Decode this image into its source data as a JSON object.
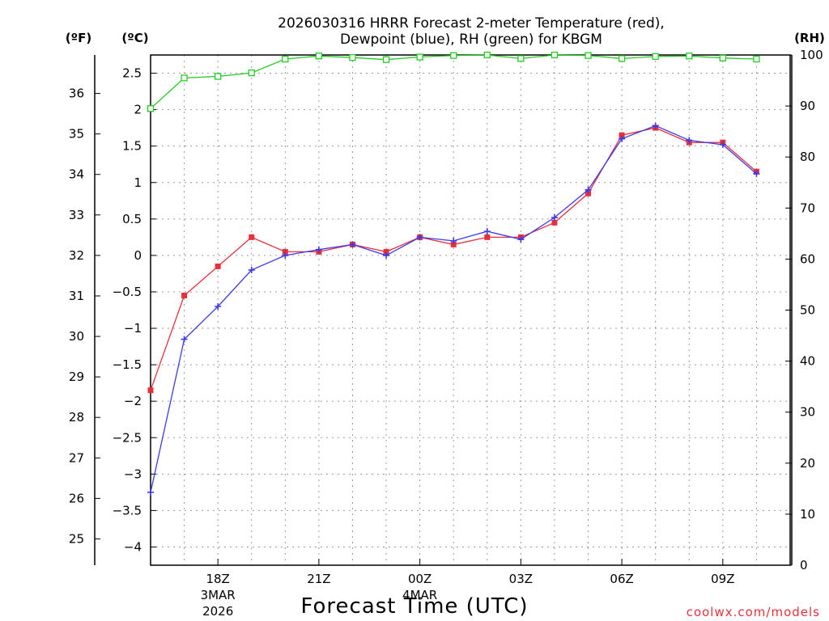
{
  "chart_data": {
    "type": "line",
    "title_line1": "2026030316 HRRR Forecast 2-meter Temperature (red),",
    "title_line2": "Dewpoint (blue), RH (green) for KBGM",
    "xlabel": "Forecast Time (UTC)",
    "credit": "coolwx.com/models",
    "units": {
      "fahrenheit": "(ºF)",
      "celsius": "(ºC)",
      "rh": "(RH)"
    },
    "celsius_axis": {
      "ylim": [
        -4.25,
        2.75
      ],
      "ticks": [
        -4,
        -3.5,
        -3,
        -2.5,
        -2,
        -1.5,
        -1,
        -0.5,
        0,
        0.5,
        1,
        1.5,
        2,
        2.5
      ]
    },
    "fahrenheit_axis": {
      "ticks": [
        25,
        26,
        27,
        28,
        29,
        30,
        31,
        32,
        33,
        34,
        35,
        36
      ]
    },
    "rh_axis": {
      "ylim": [
        0,
        100
      ],
      "ticks": [
        0,
        10,
        20,
        30,
        40,
        50,
        60,
        70,
        80,
        90,
        100
      ]
    },
    "x_hours": [
      15,
      16,
      17,
      18,
      19,
      20,
      21,
      22,
      23,
      24,
      25,
      26,
      27,
      28,
      29,
      30,
      31,
      32,
      33,
      34
    ],
    "x_ticks": [
      {
        "hour": 17,
        "label": "18Z",
        "sub1": "3MAR",
        "sub2": "2026"
      },
      {
        "hour": 20,
        "label": "21Z",
        "sub1": "",
        "sub2": ""
      },
      {
        "hour": 23,
        "label": "00Z",
        "sub1": "4MAR",
        "sub2": ""
      },
      {
        "hour": 26,
        "label": "03Z",
        "sub1": "",
        "sub2": ""
      },
      {
        "hour": 29,
        "label": "06Z",
        "sub1": "",
        "sub2": ""
      },
      {
        "hour": 32,
        "label": "09Z",
        "sub1": "",
        "sub2": ""
      }
    ],
    "series": [
      {
        "name": "Temperature",
        "axis": "celsius",
        "color": "#e8303a",
        "marker": "filled-square",
        "values": [
          -1.85,
          -0.55,
          -0.15,
          0.25,
          0.05,
          0.05,
          0.15,
          0.05,
          0.25,
          0.15,
          0.25,
          0.25,
          0.45,
          0.85,
          1.65,
          1.75,
          1.55,
          1.55,
          1.15
        ]
      },
      {
        "name": "Dewpoint",
        "axis": "celsius",
        "color": "#3a3aee",
        "marker": "plus",
        "values": [
          -3.25,
          -1.15,
          -0.7,
          -0.2,
          0.0,
          0.08,
          0.15,
          0.0,
          0.25,
          0.2,
          0.33,
          0.22,
          0.52,
          0.9,
          1.6,
          1.78,
          1.58,
          1.52,
          1.12
        ]
      },
      {
        "name": "RH",
        "axis": "rh",
        "color": "#22cc22",
        "marker": "open-square",
        "values": [
          89.5,
          95.5,
          95.8,
          96.5,
          99.2,
          99.8,
          99.5,
          99.1,
          99.6,
          99.9,
          100,
          99.3,
          100,
          99.9,
          99.3,
          99.7,
          99.8,
          99.4,
          99.2
        ]
      }
    ]
  }
}
